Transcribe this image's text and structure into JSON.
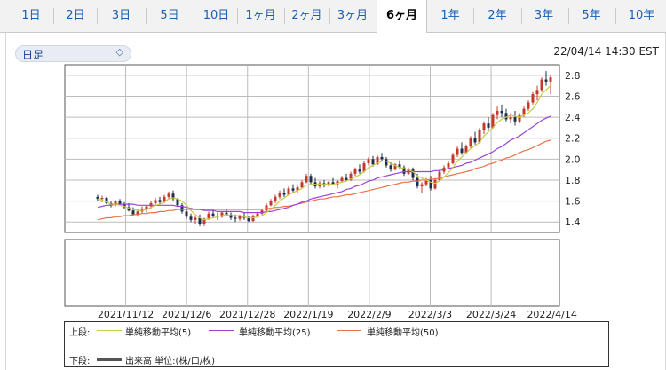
{
  "tabs": [
    {
      "label": "1日",
      "active": false
    },
    {
      "label": "2日",
      "active": false
    },
    {
      "label": "3日",
      "active": false
    },
    {
      "label": "5日",
      "active": false
    },
    {
      "label": "10日",
      "active": false
    },
    {
      "label": "1ヶ月",
      "active": false
    },
    {
      "label": "2ヶ月",
      "active": false
    },
    {
      "label": "3ヶ月",
      "active": false
    },
    {
      "label": "6ヶ月",
      "active": true
    },
    {
      "label": "1年",
      "active": false
    },
    {
      "label": "2年",
      "active": false
    },
    {
      "label": "3年",
      "active": false
    },
    {
      "label": "5年",
      "active": false
    },
    {
      "label": "10年",
      "active": false
    }
  ],
  "period_select": {
    "value": "日足"
  },
  "timestamp": "22/04/14 14:30 EST",
  "legend": {
    "upper_label": "上段:",
    "ma5": "単純移動平均(5)",
    "ma25": "単純移動平均(25)",
    "ma50": "単純移動平均(50)",
    "lower_label": "下段:",
    "volume": "出来高 単位:(株/口/枚)"
  },
  "colors": {
    "up": "#c0392b",
    "down": "#1f2d4a",
    "ma5": "#c9c94a",
    "ma25": "#9b43d6",
    "ma50": "#e8734a",
    "volume_line": "#555555"
  },
  "chart_data": {
    "type": "candlestick",
    "ylim": [
      1.3,
      2.9
    ],
    "yticks": [
      1.4,
      1.6,
      1.8,
      2.0,
      2.2,
      2.4,
      2.6,
      2.8
    ],
    "xticks": [
      "2021/11/12",
      "2021/12/6",
      "2021/12/28",
      "2022/1/19",
      "2022/2/9",
      "2022/3/3",
      "2022/3/24",
      "2022/4/14"
    ],
    "grid": true,
    "ohlc": [
      [
        1.64,
        1.66,
        1.6,
        1.62
      ],
      [
        1.62,
        1.65,
        1.59,
        1.63
      ],
      [
        1.63,
        1.64,
        1.57,
        1.58
      ],
      [
        1.58,
        1.6,
        1.54,
        1.56
      ],
      [
        1.56,
        1.61,
        1.55,
        1.6
      ],
      [
        1.6,
        1.62,
        1.56,
        1.57
      ],
      [
        1.57,
        1.59,
        1.52,
        1.54
      ],
      [
        1.54,
        1.58,
        1.5,
        1.51
      ],
      [
        1.51,
        1.54,
        1.46,
        1.47
      ],
      [
        1.47,
        1.52,
        1.45,
        1.5
      ],
      [
        1.5,
        1.55,
        1.48,
        1.52
      ],
      [
        1.52,
        1.56,
        1.49,
        1.55
      ],
      [
        1.55,
        1.6,
        1.53,
        1.58
      ],
      [
        1.58,
        1.63,
        1.56,
        1.61
      ],
      [
        1.61,
        1.64,
        1.57,
        1.59
      ],
      [
        1.59,
        1.66,
        1.58,
        1.64
      ],
      [
        1.64,
        1.69,
        1.62,
        1.67
      ],
      [
        1.67,
        1.7,
        1.6,
        1.62
      ],
      [
        1.62,
        1.63,
        1.55,
        1.56
      ],
      [
        1.56,
        1.58,
        1.48,
        1.5
      ],
      [
        1.5,
        1.52,
        1.43,
        1.45
      ],
      [
        1.45,
        1.48,
        1.4,
        1.42
      ],
      [
        1.42,
        1.46,
        1.38,
        1.44
      ],
      [
        1.44,
        1.47,
        1.36,
        1.38
      ],
      [
        1.38,
        1.44,
        1.36,
        1.43
      ],
      [
        1.43,
        1.5,
        1.42,
        1.48
      ],
      [
        1.48,
        1.52,
        1.44,
        1.46
      ],
      [
        1.46,
        1.49,
        1.42,
        1.45
      ],
      [
        1.45,
        1.5,
        1.44,
        1.49
      ],
      [
        1.49,
        1.53,
        1.46,
        1.47
      ],
      [
        1.47,
        1.49,
        1.42,
        1.44
      ],
      [
        1.44,
        1.47,
        1.4,
        1.43
      ],
      [
        1.43,
        1.47,
        1.41,
        1.46
      ],
      [
        1.46,
        1.49,
        1.42,
        1.44
      ],
      [
        1.44,
        1.46,
        1.4,
        1.41
      ],
      [
        1.41,
        1.47,
        1.4,
        1.46
      ],
      [
        1.46,
        1.5,
        1.44,
        1.48
      ],
      [
        1.48,
        1.53,
        1.47,
        1.51
      ],
      [
        1.51,
        1.58,
        1.5,
        1.56
      ],
      [
        1.56,
        1.62,
        1.55,
        1.6
      ],
      [
        1.6,
        1.66,
        1.58,
        1.64
      ],
      [
        1.64,
        1.7,
        1.62,
        1.68
      ],
      [
        1.68,
        1.72,
        1.64,
        1.66
      ],
      [
        1.66,
        1.74,
        1.65,
        1.72
      ],
      [
        1.72,
        1.76,
        1.68,
        1.7
      ],
      [
        1.7,
        1.75,
        1.68,
        1.73
      ],
      [
        1.73,
        1.8,
        1.72,
        1.78
      ],
      [
        1.78,
        1.86,
        1.77,
        1.84
      ],
      [
        1.84,
        1.86,
        1.76,
        1.78
      ],
      [
        1.78,
        1.82,
        1.72,
        1.74
      ],
      [
        1.74,
        1.79,
        1.72,
        1.77
      ],
      [
        1.77,
        1.8,
        1.73,
        1.75
      ],
      [
        1.75,
        1.79,
        1.74,
        1.78
      ],
      [
        1.78,
        1.82,
        1.75,
        1.76
      ],
      [
        1.76,
        1.8,
        1.72,
        1.79
      ],
      [
        1.79,
        1.84,
        1.78,
        1.82
      ],
      [
        1.82,
        1.86,
        1.79,
        1.8
      ],
      [
        1.8,
        1.88,
        1.79,
        1.86
      ],
      [
        1.86,
        1.92,
        1.84,
        1.9
      ],
      [
        1.9,
        1.95,
        1.86,
        1.88
      ],
      [
        1.88,
        1.98,
        1.87,
        1.96
      ],
      [
        1.96,
        2.02,
        1.94,
        2.0
      ],
      [
        2.0,
        2.03,
        1.93,
        1.95
      ],
      [
        1.95,
        2.04,
        1.94,
        2.02
      ],
      [
        2.02,
        2.06,
        1.98,
        2.0
      ],
      [
        2.0,
        2.02,
        1.92,
        1.94
      ],
      [
        1.94,
        1.97,
        1.88,
        1.9
      ],
      [
        1.9,
        1.96,
        1.89,
        1.95
      ],
      [
        1.95,
        1.99,
        1.9,
        1.92
      ],
      [
        1.92,
        1.94,
        1.84,
        1.86
      ],
      [
        1.86,
        1.92,
        1.85,
        1.9
      ],
      [
        1.9,
        1.92,
        1.8,
        1.82
      ],
      [
        1.82,
        1.86,
        1.72,
        1.74
      ],
      [
        1.74,
        1.78,
        1.68,
        1.76
      ],
      [
        1.76,
        1.82,
        1.74,
        1.8
      ],
      [
        1.8,
        1.84,
        1.7,
        1.72
      ],
      [
        1.72,
        1.82,
        1.71,
        1.8
      ],
      [
        1.8,
        1.9,
        1.79,
        1.88
      ],
      [
        1.88,
        1.94,
        1.86,
        1.92
      ],
      [
        1.92,
        1.98,
        1.9,
        1.96
      ],
      [
        1.96,
        2.06,
        1.95,
        2.04
      ],
      [
        2.04,
        2.12,
        2.02,
        2.1
      ],
      [
        2.1,
        2.16,
        2.04,
        2.06
      ],
      [
        2.06,
        2.14,
        2.05,
        2.12
      ],
      [
        2.12,
        2.22,
        2.1,
        2.2
      ],
      [
        2.2,
        2.26,
        2.14,
        2.16
      ],
      [
        2.16,
        2.3,
        2.15,
        2.28
      ],
      [
        2.28,
        2.36,
        2.24,
        2.34
      ],
      [
        2.34,
        2.4,
        2.28,
        2.3
      ],
      [
        2.3,
        2.44,
        2.29,
        2.42
      ],
      [
        2.42,
        2.5,
        2.38,
        2.46
      ],
      [
        2.46,
        2.52,
        2.4,
        2.44
      ],
      [
        2.44,
        2.48,
        2.36,
        2.38
      ],
      [
        2.38,
        2.44,
        2.34,
        2.4
      ],
      [
        2.4,
        2.46,
        2.32,
        2.36
      ],
      [
        2.36,
        2.44,
        2.34,
        2.42
      ],
      [
        2.42,
        2.5,
        2.4,
        2.48
      ],
      [
        2.48,
        2.56,
        2.46,
        2.54
      ],
      [
        2.54,
        2.64,
        2.52,
        2.62
      ],
      [
        2.62,
        2.7,
        2.56,
        2.66
      ],
      [
        2.66,
        2.78,
        2.64,
        2.76
      ],
      [
        2.76,
        2.84,
        2.7,
        2.74
      ],
      [
        2.74,
        2.8,
        2.62,
        2.78
      ]
    ],
    "ma5": [
      1.62,
      1.61,
      1.59,
      1.57,
      1.57,
      1.56,
      1.55,
      1.53,
      1.52,
      1.51,
      1.51,
      1.52,
      1.54,
      1.56,
      1.57,
      1.59,
      1.62,
      1.63,
      1.62,
      1.6,
      1.56,
      1.51,
      1.47,
      1.44,
      1.42,
      1.43,
      1.44,
      1.45,
      1.46,
      1.47,
      1.46,
      1.46,
      1.46,
      1.45,
      1.44,
      1.44,
      1.45,
      1.46,
      1.49,
      1.52,
      1.56,
      1.6,
      1.63,
      1.66,
      1.68,
      1.7,
      1.72,
      1.75,
      1.76,
      1.76,
      1.76,
      1.76,
      1.76,
      1.76,
      1.77,
      1.78,
      1.79,
      1.81,
      1.83,
      1.85,
      1.88,
      1.92,
      1.94,
      1.96,
      1.98,
      1.98,
      1.96,
      1.94,
      1.92,
      1.91,
      1.9,
      1.88,
      1.84,
      1.82,
      1.8,
      1.78,
      1.77,
      1.79,
      1.83,
      1.87,
      1.92,
      1.98,
      2.02,
      2.06,
      2.1,
      2.13,
      2.16,
      2.22,
      2.26,
      2.3,
      2.35,
      2.38,
      2.4,
      2.42,
      2.41,
      2.4,
      2.42,
      2.44,
      2.48,
      2.54,
      2.62,
      2.66,
      2.7
    ],
    "ma25": [
      1.54,
      1.55,
      1.56,
      1.56,
      1.57,
      1.57,
      1.57,
      1.57,
      1.57,
      1.56,
      1.56,
      1.56,
      1.56,
      1.56,
      1.56,
      1.56,
      1.56,
      1.56,
      1.55,
      1.55,
      1.54,
      1.53,
      1.52,
      1.52,
      1.51,
      1.51,
      1.51,
      1.5,
      1.5,
      1.5,
      1.5,
      1.5,
      1.5,
      1.49,
      1.49,
      1.49,
      1.49,
      1.49,
      1.5,
      1.5,
      1.51,
      1.52,
      1.53,
      1.54,
      1.56,
      1.57,
      1.59,
      1.6,
      1.62,
      1.63,
      1.64,
      1.65,
      1.66,
      1.67,
      1.68,
      1.69,
      1.71,
      1.72,
      1.74,
      1.75,
      1.77,
      1.79,
      1.8,
      1.82,
      1.83,
      1.84,
      1.85,
      1.86,
      1.87,
      1.88,
      1.88,
      1.88,
      1.88,
      1.88,
      1.88,
      1.88,
      1.89,
      1.89,
      1.9,
      1.91,
      1.92,
      1.93,
      1.94,
      1.96,
      1.97,
      1.99,
      2.01,
      2.03,
      2.05,
      2.07,
      2.1,
      2.12,
      2.15,
      2.18,
      2.2,
      2.22,
      2.25,
      2.28,
      2.31,
      2.34,
      2.37,
      2.39,
      2.41
    ],
    "ma50": [
      1.42,
      1.43,
      1.44,
      1.44,
      1.45,
      1.45,
      1.46,
      1.46,
      1.47,
      1.47,
      1.48,
      1.48,
      1.49,
      1.49,
      1.5,
      1.5,
      1.51,
      1.51,
      1.52,
      1.52,
      1.52,
      1.52,
      1.52,
      1.52,
      1.52,
      1.52,
      1.52,
      1.52,
      1.52,
      1.52,
      1.52,
      1.52,
      1.52,
      1.52,
      1.52,
      1.52,
      1.52,
      1.52,
      1.53,
      1.53,
      1.54,
      1.54,
      1.55,
      1.55,
      1.56,
      1.57,
      1.58,
      1.59,
      1.6,
      1.61,
      1.62,
      1.62,
      1.63,
      1.64,
      1.64,
      1.65,
      1.66,
      1.66,
      1.67,
      1.68,
      1.69,
      1.7,
      1.71,
      1.72,
      1.73,
      1.74,
      1.75,
      1.76,
      1.77,
      1.78,
      1.78,
      1.79,
      1.79,
      1.8,
      1.8,
      1.81,
      1.81,
      1.82,
      1.83,
      1.84,
      1.85,
      1.86,
      1.87,
      1.88,
      1.89,
      1.91,
      1.92,
      1.93,
      1.95,
      1.96,
      1.98,
      1.99,
      2.01,
      2.02,
      2.04,
      2.06,
      2.08,
      2.09,
      2.11,
      2.13,
      2.15,
      2.17,
      2.18
    ]
  }
}
